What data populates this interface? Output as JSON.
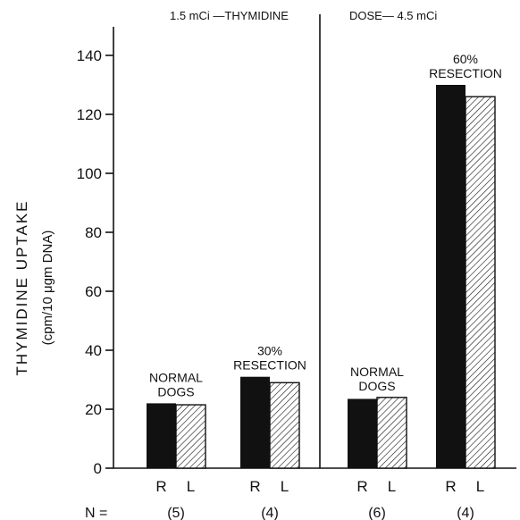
{
  "chart_data": {
    "type": "bar",
    "title": "1.5 mCi —THYMIDINE DOSE— 4.5 mCi",
    "title_left": "1.5 mCi —THYMIDINE",
    "title_right": "DOSE— 4.5 mCi",
    "ylabel_line1": "THYMIDINE UPTAKE",
    "ylabel_line2": "(cpm/10 μgm DNA)",
    "ylim": [
      0,
      150
    ],
    "yticks": [
      "0",
      "20",
      "40",
      "60",
      "80",
      "100",
      "120",
      "140"
    ],
    "series": [
      {
        "name": "R",
        "fill": "solid-black"
      },
      {
        "name": "L",
        "fill": "diagonal-hatch"
      }
    ],
    "groups": [
      {
        "label_lines": [
          "NORMAL",
          "DOGS"
        ],
        "n": "(5)",
        "R": 22,
        "L": 21.5
      },
      {
        "label_lines": [
          "30%",
          "RESECTION"
        ],
        "n": "(4)",
        "R": 31,
        "L": 29
      },
      {
        "label_lines": [
          "NORMAL",
          "DOGS"
        ],
        "n": "(6)",
        "R": 23.5,
        "L": 24
      },
      {
        "label_lines": [
          "60%",
          "RESECTION"
        ],
        "n": "(4)",
        "R": 130,
        "L": 126
      }
    ],
    "n_prefix": "N =",
    "divider_between_groups": [
      2,
      3
    ],
    "colors": {
      "ink": "#111111",
      "background": "#ffffff"
    }
  }
}
